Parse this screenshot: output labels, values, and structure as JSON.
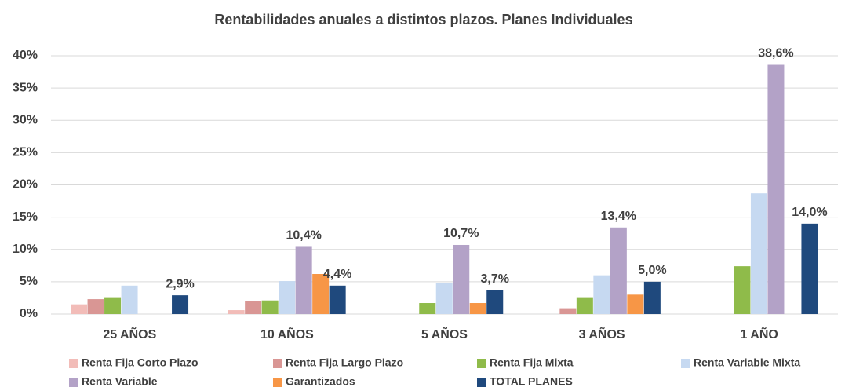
{
  "chart_data": {
    "type": "bar",
    "title": "Rentabilidades anuales a distintos plazos. Planes Individuales",
    "categories": [
      "25 AÑOS",
      "10 AÑOS",
      "5 AÑOS",
      "3 AÑOS",
      "1 AÑO"
    ],
    "series": [
      {
        "name": "Renta Fija Corto Plazo",
        "color": "#f2bcb8",
        "values": [
          1.5,
          0.6,
          null,
          null,
          null
        ]
      },
      {
        "name": "Renta Fija Largo Plazo",
        "color": "#d99694",
        "values": [
          2.3,
          2.0,
          null,
          0.9,
          null
        ]
      },
      {
        "name": "Renta Fija Mixta",
        "color": "#8fbb4a",
        "values": [
          2.6,
          2.1,
          1.7,
          2.6,
          7.4
        ]
      },
      {
        "name": "Renta Variable Mixta",
        "color": "#c6d9f1",
        "values": [
          4.4,
          5.1,
          4.8,
          6.0,
          18.7
        ]
      },
      {
        "name": "Renta Variable",
        "color": "#b3a2c7",
        "values": [
          null,
          10.4,
          10.7,
          13.4,
          38.6
        ],
        "value_labels": [
          null,
          "10,4%",
          "10,7%",
          "13,4%",
          "38,6%"
        ]
      },
      {
        "name": "Garantizados",
        "color": "#f79646",
        "values": [
          null,
          6.2,
          1.7,
          3.0,
          null
        ]
      },
      {
        "name": "TOTAL PLANES",
        "color": "#1f497d",
        "values": [
          2.9,
          4.4,
          3.7,
          5.0,
          14.0
        ],
        "value_labels": [
          "2,9%",
          "4,4%",
          "3,7%",
          "5,0%",
          "14,0%"
        ]
      }
    ],
    "ylim": [
      0,
      40
    ],
    "yticks": [
      {
        "value": 0,
        "label": "0%"
      },
      {
        "value": 5,
        "label": "5%"
      },
      {
        "value": 10,
        "label": "10%"
      },
      {
        "value": 15,
        "label": "15%"
      },
      {
        "value": 20,
        "label": "20%"
      },
      {
        "value": 25,
        "label": "25%"
      },
      {
        "value": 30,
        "label": "30%"
      },
      {
        "value": 35,
        "label": "35%"
      },
      {
        "value": 40,
        "label": "40%"
      }
    ],
    "grid": true,
    "legend": "bottom"
  }
}
